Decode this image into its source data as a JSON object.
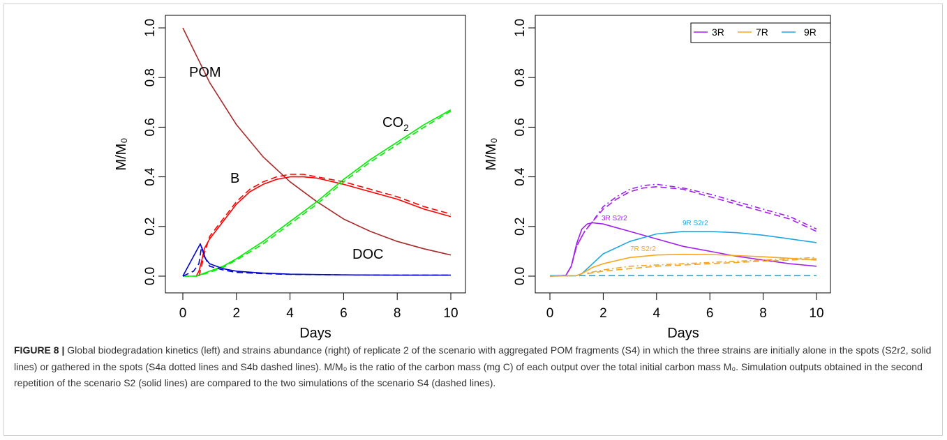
{
  "colors": {
    "POM": "#a52a2a",
    "B": "#ff0000",
    "CO2": "#00ee00",
    "DOC": "#0000cc",
    "3R": "#a020f0",
    "7R": "#f5a623",
    "9R": "#1ea7e0"
  },
  "chart_data": [
    {
      "type": "line",
      "xlabel": "Days",
      "ylabel": "M/M₀",
      "xlim": [
        0,
        10
      ],
      "ylim": [
        0,
        1
      ],
      "xticks": [
        "0",
        "2",
        "4",
        "6",
        "8",
        "10"
      ],
      "yticks": [
        "0.0",
        "0.2",
        "0.4",
        "0.6",
        "0.8",
        "1.0"
      ],
      "grid": false,
      "series": [
        {
          "name": "POM",
          "color": "#a52a2a",
          "style": "solid",
          "x": [
            0,
            1,
            2,
            3,
            4,
            5,
            6,
            7,
            8,
            9,
            10
          ],
          "y": [
            1.0,
            0.78,
            0.61,
            0.48,
            0.38,
            0.3,
            0.23,
            0.18,
            0.14,
            0.11,
            0.085
          ]
        },
        {
          "name": "B",
          "color": "#ff0000",
          "style": "solid",
          "x": [
            0.5,
            0.6,
            0.7,
            0.8,
            1.0,
            1.5,
            2.0,
            2.5,
            3.0,
            3.5,
            4.0,
            4.5,
            5.0,
            6.0,
            7.0,
            8.0,
            9.0,
            10.0
          ],
          "y": [
            0.0,
            0.02,
            0.06,
            0.11,
            0.15,
            0.22,
            0.29,
            0.34,
            0.37,
            0.39,
            0.4,
            0.4,
            0.395,
            0.37,
            0.34,
            0.31,
            0.27,
            0.24
          ]
        },
        {
          "name": "B (S4)",
          "color": "#ff0000",
          "style": "dashed",
          "x": [
            0.6,
            0.7,
            0.8,
            1.0,
            1.5,
            2.0,
            2.5,
            3.0,
            3.5,
            4.0,
            4.5,
            5.0,
            6.0,
            7.0,
            8.0,
            9.0,
            10.0
          ],
          "y": [
            0.0,
            0.04,
            0.09,
            0.16,
            0.23,
            0.3,
            0.35,
            0.38,
            0.4,
            0.41,
            0.41,
            0.4,
            0.38,
            0.35,
            0.32,
            0.28,
            0.25
          ]
        },
        {
          "name": "CO2",
          "color": "#00ee00",
          "style": "solid",
          "x": [
            0,
            0.5,
            1,
            1.5,
            2,
            3,
            4,
            5,
            6,
            7,
            8,
            9,
            10
          ],
          "y": [
            0,
            0,
            0.02,
            0.04,
            0.07,
            0.14,
            0.22,
            0.3,
            0.39,
            0.47,
            0.54,
            0.61,
            0.67
          ]
        },
        {
          "name": "CO2 (S4)",
          "color": "#00ee00",
          "style": "dashed",
          "x": [
            0,
            0.5,
            1,
            1.5,
            2,
            3,
            4,
            5,
            6,
            7,
            8,
            9,
            10
          ],
          "y": [
            0,
            0,
            0.015,
            0.035,
            0.065,
            0.13,
            0.21,
            0.29,
            0.38,
            0.46,
            0.53,
            0.6,
            0.665
          ]
        },
        {
          "name": "DOC",
          "color": "#0000cc",
          "style": "solid",
          "x": [
            0,
            0.3,
            0.5,
            0.65,
            0.75,
            0.85,
            1.0,
            1.5,
            2,
            3,
            4,
            6,
            8,
            10
          ],
          "y": [
            0,
            0.06,
            0.1,
            0.13,
            0.1,
            0.07,
            0.05,
            0.03,
            0.02,
            0.012,
            0.008,
            0.005,
            0.004,
            0.004
          ]
        },
        {
          "name": "DOC (S4)",
          "color": "#0000cc",
          "style": "dashed",
          "x": [
            0,
            0.4,
            0.6,
            0.7,
            0.8,
            1.0,
            1.5,
            2,
            3,
            4,
            6,
            8,
            10
          ],
          "y": [
            0,
            0.02,
            0.05,
            0.12,
            0.08,
            0.04,
            0.025,
            0.015,
            0.01,
            0.007,
            0.005,
            0.004,
            0.004
          ]
        }
      ],
      "annotations": [
        "POM",
        "B",
        "CO",
        "2",
        "DOC"
      ]
    },
    {
      "type": "line",
      "xlabel": "Days",
      "ylabel": "M/M₀",
      "xlim": [
        0,
        10
      ],
      "ylim": [
        0,
        1
      ],
      "xticks": [
        "0",
        "2",
        "4",
        "6",
        "8",
        "10"
      ],
      "yticks": [
        "0.0",
        "0.2",
        "0.4",
        "0.6",
        "0.8",
        "1.0"
      ],
      "grid": false,
      "legend": {
        "position": "top-right",
        "entries": [
          "3R",
          "7R",
          "9R"
        ]
      },
      "series": [
        {
          "name": "3R",
          "color": "#a020f0",
          "style": "solid",
          "x": [
            0,
            0.6,
            0.8,
            1.0,
            1.2,
            1.4,
            1.6,
            2.0,
            3,
            4,
            5,
            6,
            7,
            8,
            9,
            10
          ],
          "y": [
            0,
            0.003,
            0.04,
            0.13,
            0.19,
            0.21,
            0.215,
            0.21,
            0.18,
            0.15,
            0.12,
            0.1,
            0.08,
            0.065,
            0.05,
            0.04
          ]
        },
        {
          "name": "3R S4",
          "color": "#a020f0",
          "style": "dashed",
          "x": [
            0,
            0.6,
            0.8,
            1.0,
            1.3,
            1.6,
            2,
            2.5,
            3,
            3.5,
            4,
            5,
            6,
            7,
            8,
            9,
            10
          ],
          "y": [
            0,
            0.003,
            0.04,
            0.12,
            0.18,
            0.22,
            0.27,
            0.31,
            0.34,
            0.355,
            0.36,
            0.35,
            0.32,
            0.29,
            0.26,
            0.23,
            0.18
          ]
        },
        {
          "name": "3R S4 (dotted)",
          "color": "#a020f0",
          "style": "dotdash",
          "x": [
            0,
            0.6,
            0.8,
            1.0,
            1.3,
            1.6,
            2,
            2.5,
            3,
            3.5,
            4,
            5,
            6,
            7,
            8,
            9,
            10
          ],
          "y": [
            0,
            0.003,
            0.04,
            0.12,
            0.18,
            0.22,
            0.28,
            0.32,
            0.35,
            0.365,
            0.37,
            0.355,
            0.33,
            0.3,
            0.27,
            0.24,
            0.19
          ]
        },
        {
          "name": "9R",
          "color": "#1ea7e0",
          "style": "solid",
          "x": [
            0,
            1.0,
            1.2,
            1.6,
            2,
            3,
            4,
            5,
            6,
            7,
            8,
            9,
            10
          ],
          "y": [
            0,
            0.002,
            0.01,
            0.05,
            0.09,
            0.14,
            0.17,
            0.18,
            0.18,
            0.175,
            0.165,
            0.15,
            0.135
          ]
        },
        {
          "name": "9R S4",
          "color": "#1ea7e0",
          "style": "dashed",
          "x": [
            0,
            10
          ],
          "y": [
            0.002,
            0.002
          ]
        },
        {
          "name": "7R",
          "color": "#f5a623",
          "style": "solid",
          "x": [
            0,
            1.0,
            1.2,
            1.6,
            2,
            3,
            4,
            5,
            6,
            7,
            8,
            9,
            10
          ],
          "y": [
            0,
            0.002,
            0.01,
            0.035,
            0.05,
            0.075,
            0.085,
            0.088,
            0.087,
            0.083,
            0.078,
            0.072,
            0.065
          ]
        },
        {
          "name": "7R S4",
          "color": "#f5a623",
          "style": "dashed",
          "x": [
            1.4,
            2,
            3,
            4,
            5,
            6,
            7,
            8,
            9,
            10
          ],
          "y": [
            0.01,
            0.02,
            0.03,
            0.04,
            0.045,
            0.05,
            0.055,
            0.06,
            0.065,
            0.07
          ]
        },
        {
          "name": "7R S4 (dotted)",
          "color": "#f5a623",
          "style": "dotdash",
          "x": [
            1.4,
            2,
            3,
            4,
            5,
            6,
            7,
            8,
            9,
            10
          ],
          "y": [
            0.012,
            0.025,
            0.04,
            0.045,
            0.05,
            0.055,
            0.06,
            0.065,
            0.07,
            0.075
          ]
        }
      ],
      "annotations": [
        "3R S2r2",
        "7R S2r2",
        "9R S2r2"
      ]
    }
  ],
  "caption": {
    "label": "FIGURE 8 |",
    "text": "Global biodegradation kinetics (left) and strains abundance (right) of replicate 2 of the scenario with aggregated POM fragments (S4) in which the three strains are initially alone in the spots (S2r2, solid lines) or gathered in the spots (S4a dotted lines and S4b dashed lines). M/M₀ is the ratio of the carbon mass (mg C) of each output over the total initial carbon mass M₀. Simulation outputs obtained in the second repetition of the scenario S2 (solid lines) are compared to the two simulations of the scenario S4 (dashed lines)."
  }
}
